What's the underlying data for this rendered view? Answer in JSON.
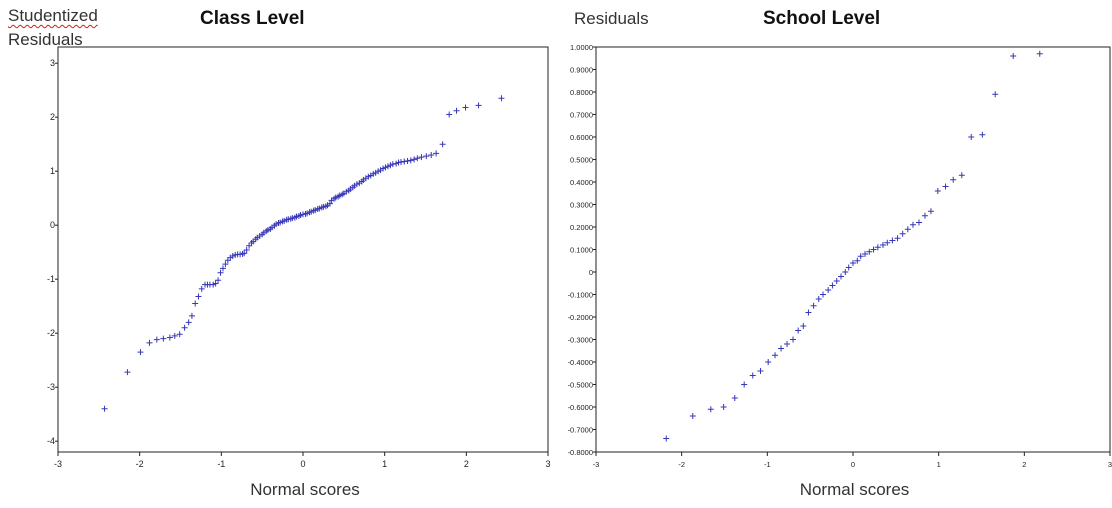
{
  "chart_data": [
    {
      "type": "scatter",
      "title": "Class Level",
      "ylabel_lines": [
        "Studentized",
        "Residuals"
      ],
      "xlabel": "Normal scores",
      "xlim": [
        -3,
        3
      ],
      "ylim": [
        -4.2,
        3.3
      ],
      "x_ticks": [
        "-3",
        "-2",
        "-1",
        "0",
        "1",
        "2",
        "3"
      ],
      "y_ticks": [
        "3",
        "2",
        "1",
        "0",
        "-1",
        "-2",
        "-3",
        "-4"
      ],
      "marker_color": "#3636b8",
      "grid": false,
      "x": [
        -2.43,
        -2.15,
        -1.99,
        -1.88,
        -1.79,
        -1.71,
        -1.63,
        -1.57,
        -1.51,
        -1.45,
        -1.4,
        -1.36,
        -1.32,
        -1.28,
        -1.24,
        -1.2,
        -1.17,
        -1.14,
        -1.1,
        -1.07,
        -1.04,
        -1.01,
        -0.98,
        -0.95,
        -0.92,
        -0.89,
        -0.86,
        -0.83,
        -0.8,
        -0.77,
        -0.74,
        -0.72,
        -0.69,
        -0.66,
        -0.63,
        -0.61,
        -0.58,
        -0.56,
        -0.53,
        -0.5,
        -0.48,
        -0.45,
        -0.43,
        -0.4,
        -0.38,
        -0.35,
        -0.33,
        -0.3,
        -0.28,
        -0.25,
        -0.23,
        -0.2,
        -0.18,
        -0.15,
        -0.13,
        -0.1,
        -0.08,
        -0.05,
        -0.03,
        0.0,
        0.03,
        0.05,
        0.08,
        0.1,
        0.13,
        0.15,
        0.18,
        0.2,
        0.23,
        0.25,
        0.28,
        0.3,
        0.33,
        0.35,
        0.38,
        0.4,
        0.43,
        0.45,
        0.48,
        0.5,
        0.53,
        0.56,
        0.58,
        0.61,
        0.63,
        0.66,
        0.69,
        0.72,
        0.74,
        0.77,
        0.8,
        0.83,
        0.86,
        0.89,
        0.92,
        0.95,
        0.98,
        1.01,
        1.04,
        1.07,
        1.1,
        1.14,
        1.17,
        1.2,
        1.24,
        1.28,
        1.32,
        1.36,
        1.4,
        1.45,
        1.51,
        1.57,
        1.63,
        1.71,
        1.79,
        1.88,
        1.99,
        2.15,
        2.43
      ],
      "y": [
        -3.4,
        -2.72,
        -2.35,
        -2.18,
        -2.12,
        -2.1,
        -2.08,
        -2.05,
        -2.02,
        -1.9,
        -1.8,
        -1.68,
        -1.45,
        -1.32,
        -1.18,
        -1.1,
        -1.1,
        -1.1,
        -1.1,
        -1.08,
        -1.02,
        -0.88,
        -0.8,
        -0.72,
        -0.65,
        -0.6,
        -0.57,
        -0.55,
        -0.54,
        -0.54,
        -0.53,
        -0.52,
        -0.46,
        -0.38,
        -0.33,
        -0.3,
        -0.26,
        -0.23,
        -0.2,
        -0.17,
        -0.14,
        -0.11,
        -0.09,
        -0.07,
        -0.04,
        -0.01,
        0.02,
        0.04,
        0.05,
        0.07,
        0.08,
        0.1,
        0.11,
        0.12,
        0.13,
        0.14,
        0.16,
        0.17,
        0.19,
        0.2,
        0.21,
        0.22,
        0.24,
        0.25,
        0.27,
        0.28,
        0.3,
        0.31,
        0.33,
        0.34,
        0.35,
        0.37,
        0.4,
        0.46,
        0.49,
        0.51,
        0.53,
        0.55,
        0.57,
        0.59,
        0.62,
        0.64,
        0.67,
        0.7,
        0.73,
        0.76,
        0.78,
        0.81,
        0.84,
        0.87,
        0.9,
        0.92,
        0.95,
        0.97,
        1.0,
        1.02,
        1.05,
        1.07,
        1.09,
        1.11,
        1.13,
        1.14,
        1.16,
        1.17,
        1.18,
        1.19,
        1.2,
        1.22,
        1.24,
        1.26,
        1.28,
        1.3,
        1.33,
        1.5,
        2.05,
        2.12,
        2.18,
        2.22,
        2.35
      ]
    },
    {
      "type": "scatter",
      "title": "School Level",
      "ylabel_lines": [
        "Residuals"
      ],
      "xlabel": "Normal scores",
      "xlim": [
        -3,
        3
      ],
      "ylim": [
        -0.8,
        1.0
      ],
      "x_ticks": [
        "-3",
        "-2",
        "-1",
        "0",
        "1",
        "2",
        "3"
      ],
      "y_ticks": [
        "1.0000",
        "0.9000",
        "0.8000",
        "0.7000",
        "0.6000",
        "0.5000",
        "0.4000",
        "0.3000",
        "0.2000",
        "0.1000",
        "0",
        "-0.1000",
        "-0.2000",
        "-0.3000",
        "-0.4000",
        "-0.5000",
        "-0.6000",
        "-0.7000",
        "-0.8000"
      ],
      "marker_color": "#3636b8",
      "grid": false,
      "x": [
        -2.18,
        -1.87,
        -1.66,
        -1.51,
        -1.38,
        -1.27,
        -1.17,
        -1.08,
        -0.99,
        -0.91,
        -0.84,
        -0.77,
        -0.7,
        -0.64,
        -0.58,
        -0.52,
        -0.46,
        -0.4,
        -0.35,
        -0.29,
        -0.24,
        -0.19,
        -0.14,
        -0.09,
        -0.05,
        0.0,
        0.05,
        0.09,
        0.14,
        0.19,
        0.24,
        0.29,
        0.35,
        0.4,
        0.46,
        0.52,
        0.58,
        0.64,
        0.7,
        0.77,
        0.84,
        0.91,
        0.99,
        1.08,
        1.17,
        1.27,
        1.38,
        1.51,
        1.66,
        1.87,
        2.18
      ],
      "y": [
        -0.74,
        -0.64,
        -0.61,
        -0.6,
        -0.56,
        -0.5,
        -0.46,
        -0.44,
        -0.4,
        -0.37,
        -0.34,
        -0.32,
        -0.3,
        -0.26,
        -0.24,
        -0.18,
        -0.15,
        -0.12,
        -0.1,
        -0.08,
        -0.06,
        -0.04,
        -0.02,
        0.0,
        0.02,
        0.04,
        0.05,
        0.07,
        0.08,
        0.09,
        0.1,
        0.11,
        0.12,
        0.13,
        0.14,
        0.15,
        0.17,
        0.19,
        0.21,
        0.22,
        0.25,
        0.27,
        0.36,
        0.38,
        0.41,
        0.43,
        0.6,
        0.61,
        0.79,
        0.96,
        0.97
      ]
    }
  ]
}
